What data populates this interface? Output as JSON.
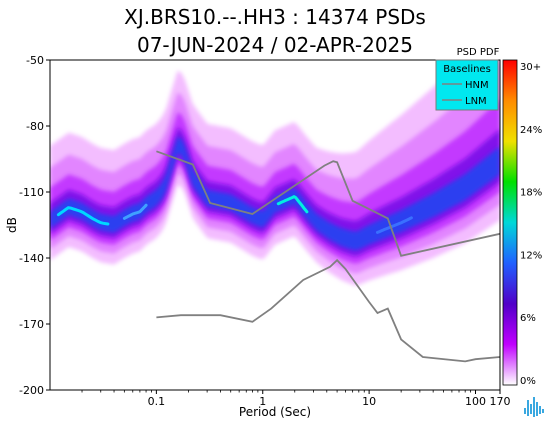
{
  "chart_data": {
    "type": "heatmap",
    "title": "XJ.BRS10.--.HH3 : 14374 PSDs",
    "subtitle": "07-JUN-2024 / 02-APR-2025",
    "xlabel": "Period (Sec)",
    "ylabel": "dB",
    "x_scale": "log",
    "xlim": [
      0.01,
      170
    ],
    "ylim": [
      -200,
      -50
    ],
    "x_ticks": [
      {
        "value": 0.1,
        "label": "0.1"
      },
      {
        "value": 1,
        "label": "1"
      },
      {
        "value": 10,
        "label": "10"
      },
      {
        "value": 100,
        "label": "100"
      },
      {
        "value": 170,
        "label": "170"
      }
    ],
    "y_ticks": [
      {
        "value": -50,
        "label": "-50"
      },
      {
        "value": -80,
        "label": "-80"
      },
      {
        "value": -110,
        "label": "-110"
      },
      {
        "value": -140,
        "label": "-140"
      },
      {
        "value": -170,
        "label": "-170"
      },
      {
        "value": -200,
        "label": "-200"
      }
    ],
    "colorbar": {
      "title": "PSD PDF",
      "labels": [
        "30+",
        "24%",
        "18%",
        "12%",
        "6%",
        "0%"
      ],
      "colors": [
        "#ff0000",
        "#ff8c00",
        "#f0e000",
        "#00e000",
        "#00d8d8",
        "#2060ff",
        "#5000c8",
        "#c000ff",
        "#ffffff"
      ]
    },
    "legend": {
      "title": "Baselines",
      "position": "top-right",
      "entries": [
        "HNM",
        "LNM"
      ],
      "background": "#00e8f0"
    },
    "series": [
      {
        "name": "HNM",
        "color": "#808080",
        "points": [
          [
            0.1,
            -91.5
          ],
          [
            0.22,
            -97.5
          ],
          [
            0.32,
            -115
          ],
          [
            0.8,
            -120
          ],
          [
            3.8,
            -98
          ],
          [
            4.6,
            -96
          ],
          [
            5,
            -96.5
          ],
          [
            7,
            -114
          ],
          [
            15,
            -122
          ],
          [
            20,
            -139
          ],
          [
            170,
            -129
          ]
        ]
      },
      {
        "name": "LNM",
        "color": "#808080",
        "points": [
          [
            0.1,
            -167
          ],
          [
            0.17,
            -166
          ],
          [
            0.4,
            -166
          ],
          [
            0.8,
            -169
          ],
          [
            1.2,
            -163
          ],
          [
            2.4,
            -150
          ],
          [
            4.3,
            -144
          ],
          [
            5,
            -141
          ],
          [
            6,
            -145
          ],
          [
            10,
            -160
          ],
          [
            12,
            -165
          ],
          [
            15,
            -163
          ],
          [
            20,
            -177
          ],
          [
            32,
            -185
          ],
          [
            80,
            -187
          ],
          [
            100,
            -186
          ],
          [
            170,
            -185
          ]
        ]
      }
    ],
    "density_mode": {
      "name": "PDF mode",
      "points": [
        [
          0.01,
          -123
        ],
        [
          0.015,
          -117
        ],
        [
          0.02,
          -119
        ],
        [
          0.025,
          -122
        ],
        [
          0.03,
          -124
        ],
        [
          0.04,
          -125
        ],
        [
          0.05,
          -122
        ],
        [
          0.06,
          -120
        ],
        [
          0.07,
          -119
        ],
        [
          0.08,
          -116
        ],
        [
          0.1,
          -113
        ],
        [
          0.12,
          -108
        ],
        [
          0.14,
          -97
        ],
        [
          0.16,
          -88
        ],
        [
          0.18,
          -91
        ],
        [
          0.22,
          -104
        ],
        [
          0.3,
          -113
        ],
        [
          0.5,
          -115
        ],
        [
          0.8,
          -121
        ],
        [
          1.0,
          -123
        ],
        [
          1.3,
          -116
        ],
        [
          2.0,
          -112
        ],
        [
          2.6,
          -119
        ],
        [
          3.2,
          -124
        ],
        [
          4.2,
          -128
        ],
        [
          5.5,
          -131
        ],
        [
          7.5,
          -133
        ],
        [
          10,
          -130
        ],
        [
          14,
          -127
        ],
        [
          20,
          -124
        ],
        [
          40,
          -117
        ],
        [
          80,
          -109
        ],
        [
          170,
          -97
        ]
      ]
    }
  }
}
